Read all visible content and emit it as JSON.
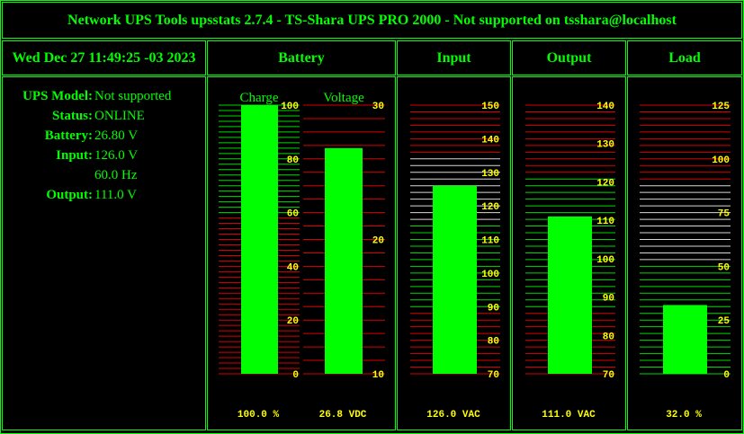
{
  "header": {
    "title": "Network UPS Tools upsstats 2.7.4 - TS-Shara UPS PRO 2000 - Not supported on tsshara@localhost",
    "datetime": "Wed Dec 27 11:49:25 -03 2023",
    "col_battery": "Battery",
    "col_input": "Input",
    "col_output": "Output",
    "col_load": "Load"
  },
  "info": {
    "model_label": "UPS Model:",
    "model_value": "Not supported",
    "status_label": "Status:",
    "status_value": "ONLINE",
    "battery_label": "Battery:",
    "battery_value": "26.80 V",
    "input_label": "Input:",
    "input_value": "126.0 V",
    "frequency_value": "60.0 Hz",
    "output_label": "Output:",
    "output_value": "111.0 V"
  },
  "colors": {
    "accent": "#00ff00",
    "scale_text": "#ffff00",
    "red": "#ff0000",
    "white": "#ffffff",
    "bg": "#000000"
  },
  "chart_data": [
    {
      "type": "bar",
      "id": "charge",
      "title": "Charge",
      "min": 0,
      "max": 100,
      "value": 100,
      "ticks": [
        "0",
        "20",
        "40",
        "60",
        "80",
        "100"
      ],
      "tick_values": [
        0,
        20,
        40,
        60,
        80,
        100
      ],
      "readout": "100.0 %"
    },
    {
      "type": "bar",
      "id": "voltage",
      "title": "Voltage",
      "min": 10,
      "max": 30,
      "value": 26.8,
      "ticks": [
        "10",
        "20",
        "30"
      ],
      "tick_values": [
        10,
        20,
        30
      ],
      "readout": "26.8 VDC"
    },
    {
      "type": "bar",
      "id": "input",
      "title": "",
      "min": 70,
      "max": 150,
      "value": 126,
      "ticks": [
        "70",
        "80",
        "90",
        "100",
        "110",
        "120",
        "130",
        "140",
        "150"
      ],
      "tick_values": [
        70,
        80,
        90,
        100,
        110,
        120,
        130,
        140,
        150
      ],
      "readout": "126.0 VAC"
    },
    {
      "type": "bar",
      "id": "output",
      "title": "",
      "min": 70,
      "max": 140,
      "value": 111,
      "ticks": [
        "70",
        "80",
        "90",
        "100",
        "110",
        "120",
        "130",
        "140"
      ],
      "tick_values": [
        70,
        80,
        90,
        100,
        110,
        120,
        130,
        140
      ],
      "readout": "111.0 VAC"
    },
    {
      "type": "bar",
      "id": "load",
      "title": "",
      "min": 0,
      "max": 125,
      "value": 32,
      "ticks": [
        "0",
        "25",
        "50",
        "75",
        "100",
        "125"
      ],
      "tick_values": [
        0,
        25,
        50,
        75,
        100,
        125
      ],
      "readout": "32.0 %"
    }
  ]
}
